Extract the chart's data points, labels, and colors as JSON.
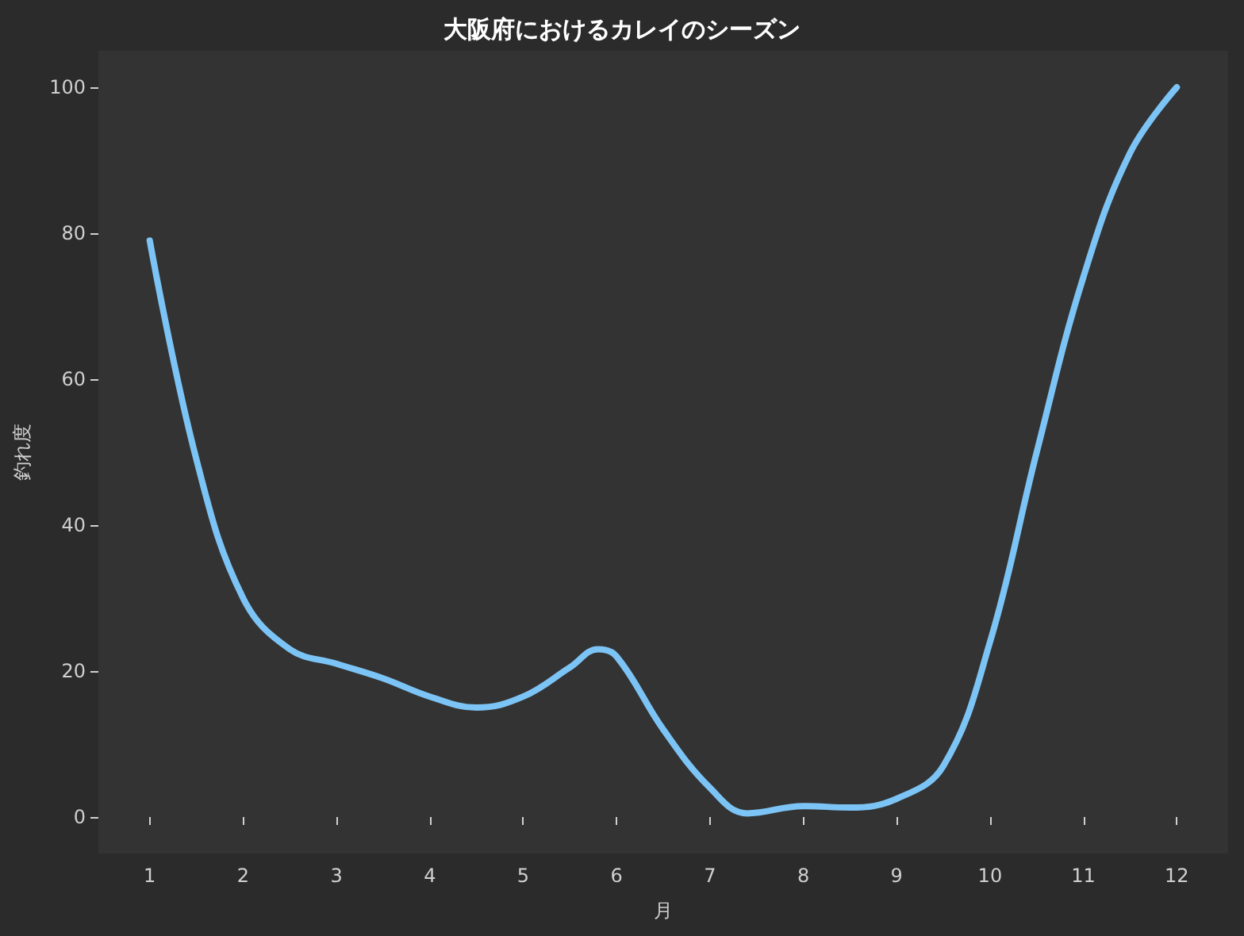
{
  "chart_data": {
    "type": "line",
    "title": "大阪府におけるカレイのシーズン",
    "xlabel": "月",
    "ylabel": "釣れ度",
    "x": [
      1,
      1.5,
      2,
      2.5,
      3,
      3.5,
      4,
      4.5,
      5,
      5.5,
      5.8,
      6,
      6.5,
      7,
      7.4,
      8,
      8.5,
      9,
      9.5,
      10,
      10.5,
      11,
      11.5,
      12
    ],
    "series": [
      {
        "color": "#7cc4f5",
        "values": [
          79,
          49,
          30,
          23,
          21,
          19,
          16.5,
          15,
          16.5,
          20.5,
          23,
          22,
          12,
          4,
          0.5,
          1.5,
          1.3,
          2.5,
          7,
          24,
          50,
          74,
          91,
          100
        ]
      }
    ],
    "xlim": [
      0.45,
      12.55
    ],
    "ylim": [
      -5,
      105
    ],
    "xticks": [
      1,
      2,
      3,
      4,
      5,
      6,
      7,
      8,
      9,
      10,
      11,
      12
    ],
    "yticks": [
      0,
      20,
      40,
      60,
      80,
      100
    ],
    "grid": false,
    "marker": "none",
    "line_style": "solid"
  }
}
